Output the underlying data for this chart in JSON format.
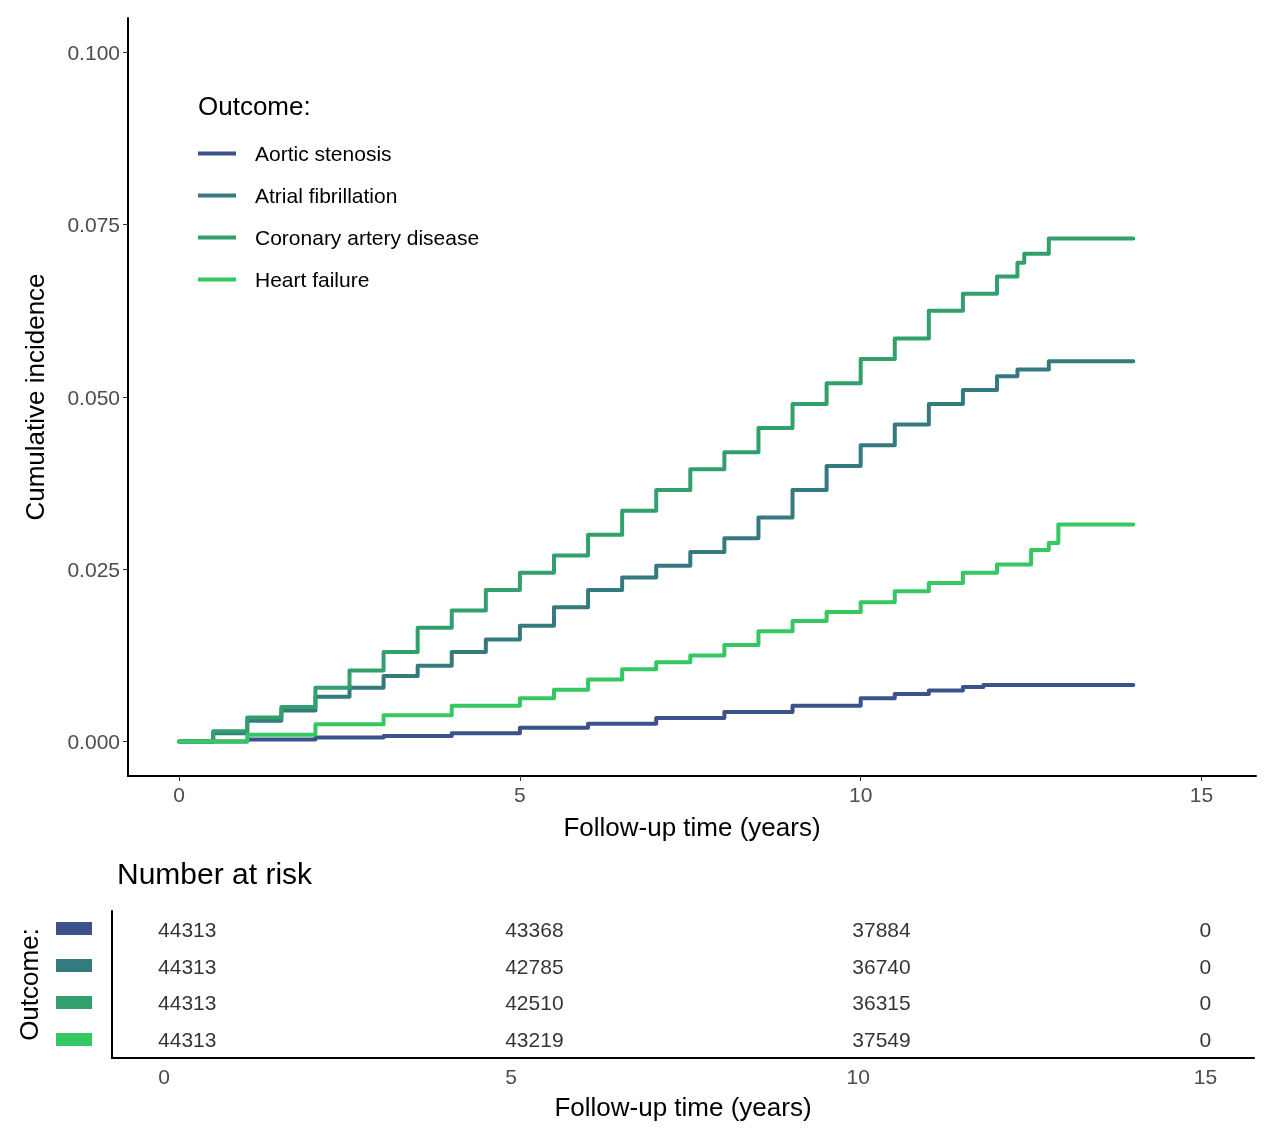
{
  "chart_data": [
    {
      "type": "step",
      "xlabel": "Follow-up time (years)",
      "ylabel": "Cumulative incidence",
      "legend_title": "Outcome:",
      "legend": "top left",
      "grid": false,
      "marker": "none",
      "line_style": "solid",
      "xlim": [
        -0.75,
        15.8
      ],
      "xticks": [
        0,
        5,
        10,
        15
      ],
      "ylim": [
        -0.005,
        0.105
      ],
      "yticks": [
        {
          "value": 0,
          "label": "0.000"
        },
        {
          "value": 0.025,
          "label": "0.025"
        },
        {
          "value": 0.05,
          "label": "0.050"
        },
        {
          "value": 0.075,
          "label": "0.075"
        },
        {
          "value": 0.1,
          "label": "0.100"
        }
      ],
      "series": [
        {
          "name": "Aortic stenosis",
          "color": "#3b528b",
          "x": [
            0,
            1,
            2,
            3,
            4,
            5,
            6,
            7,
            8,
            9,
            10,
            10.5,
            11,
            11.5,
            11.8,
            14
          ],
          "values": [
            0,
            0.0003,
            0.0006,
            0.0008,
            0.0012,
            0.002,
            0.0026,
            0.0034,
            0.0043,
            0.0052,
            0.0063,
            0.0069,
            0.0074,
            0.0079,
            0.0082,
            0.0082
          ]
        },
        {
          "name": "Atrial fibrillation",
          "color": "#357a7e",
          "x": [
            0,
            0.5,
            1,
            1.5,
            2,
            2.5,
            3,
            3.5,
            4,
            4.5,
            5,
            5.5,
            6,
            6.5,
            7,
            7.5,
            8,
            8.5,
            9,
            9.5,
            10,
            10.5,
            11,
            11.5,
            12,
            12.3,
            12.76,
            14
          ],
          "values": [
            0,
            0.0012,
            0.003,
            0.0045,
            0.0065,
            0.0078,
            0.0095,
            0.011,
            0.013,
            0.0148,
            0.0168,
            0.0195,
            0.022,
            0.0238,
            0.0255,
            0.0275,
            0.0295,
            0.0325,
            0.0365,
            0.04,
            0.043,
            0.046,
            0.049,
            0.051,
            0.053,
            0.054,
            0.0552,
            0.0552
          ]
        },
        {
          "name": "Coronary artery disease",
          "color": "#31a06c",
          "x": [
            0,
            0.5,
            1,
            1.5,
            2,
            2.5,
            3,
            3.5,
            4,
            4.5,
            5,
            5.5,
            6,
            6.5,
            7,
            7.5,
            8,
            8.5,
            9,
            9.5,
            10,
            10.5,
            11,
            11.5,
            12,
            12.3,
            12.4,
            12.76,
            14
          ],
          "values": [
            0,
            0.0015,
            0.0035,
            0.005,
            0.0078,
            0.0103,
            0.013,
            0.0165,
            0.019,
            0.022,
            0.0245,
            0.027,
            0.03,
            0.0335,
            0.0365,
            0.0395,
            0.042,
            0.0455,
            0.049,
            0.052,
            0.0555,
            0.0585,
            0.0625,
            0.065,
            0.0675,
            0.0695,
            0.0708,
            0.073,
            0.073
          ]
        },
        {
          "name": "Heart failure",
          "color": "#35c762",
          "x": [
            0,
            1,
            2,
            3,
            4,
            5,
            5.5,
            6,
            6.5,
            7,
            7.5,
            8,
            8.5,
            9,
            9.5,
            10,
            10.5,
            11,
            11.5,
            12,
            12.5,
            12.76,
            12.9,
            14
          ],
          "values": [
            0,
            0.001,
            0.0025,
            0.0038,
            0.0052,
            0.0063,
            0.0075,
            0.009,
            0.0105,
            0.0115,
            0.0125,
            0.014,
            0.016,
            0.0175,
            0.0188,
            0.0202,
            0.0218,
            0.023,
            0.0245,
            0.0257,
            0.0278,
            0.0288,
            0.0315,
            0.0315
          ]
        }
      ]
    },
    {
      "type": "heatmap",
      "title": "Number at risk",
      "xlabel": "Follow-up time (years)",
      "ylabel": "Outcome:",
      "data_labels": true,
      "x": [
        0,
        5,
        10,
        15
      ],
      "xlim": [
        -0.75,
        15.7
      ],
      "xticks": [
        0,
        5,
        10,
        15
      ],
      "y_categories": [
        null,
        null,
        null,
        null
      ],
      "colors": [
        "#3b528b",
        "#357a7e",
        "#31a06c",
        "#35c762"
      ],
      "cells": [
        [
          44313,
          43368,
          37884,
          0
        ],
        [
          44313,
          42785,
          36740,
          0
        ],
        [
          44313,
          42510,
          36315,
          0
        ],
        [
          44313,
          43219,
          37549,
          0
        ]
      ]
    }
  ]
}
